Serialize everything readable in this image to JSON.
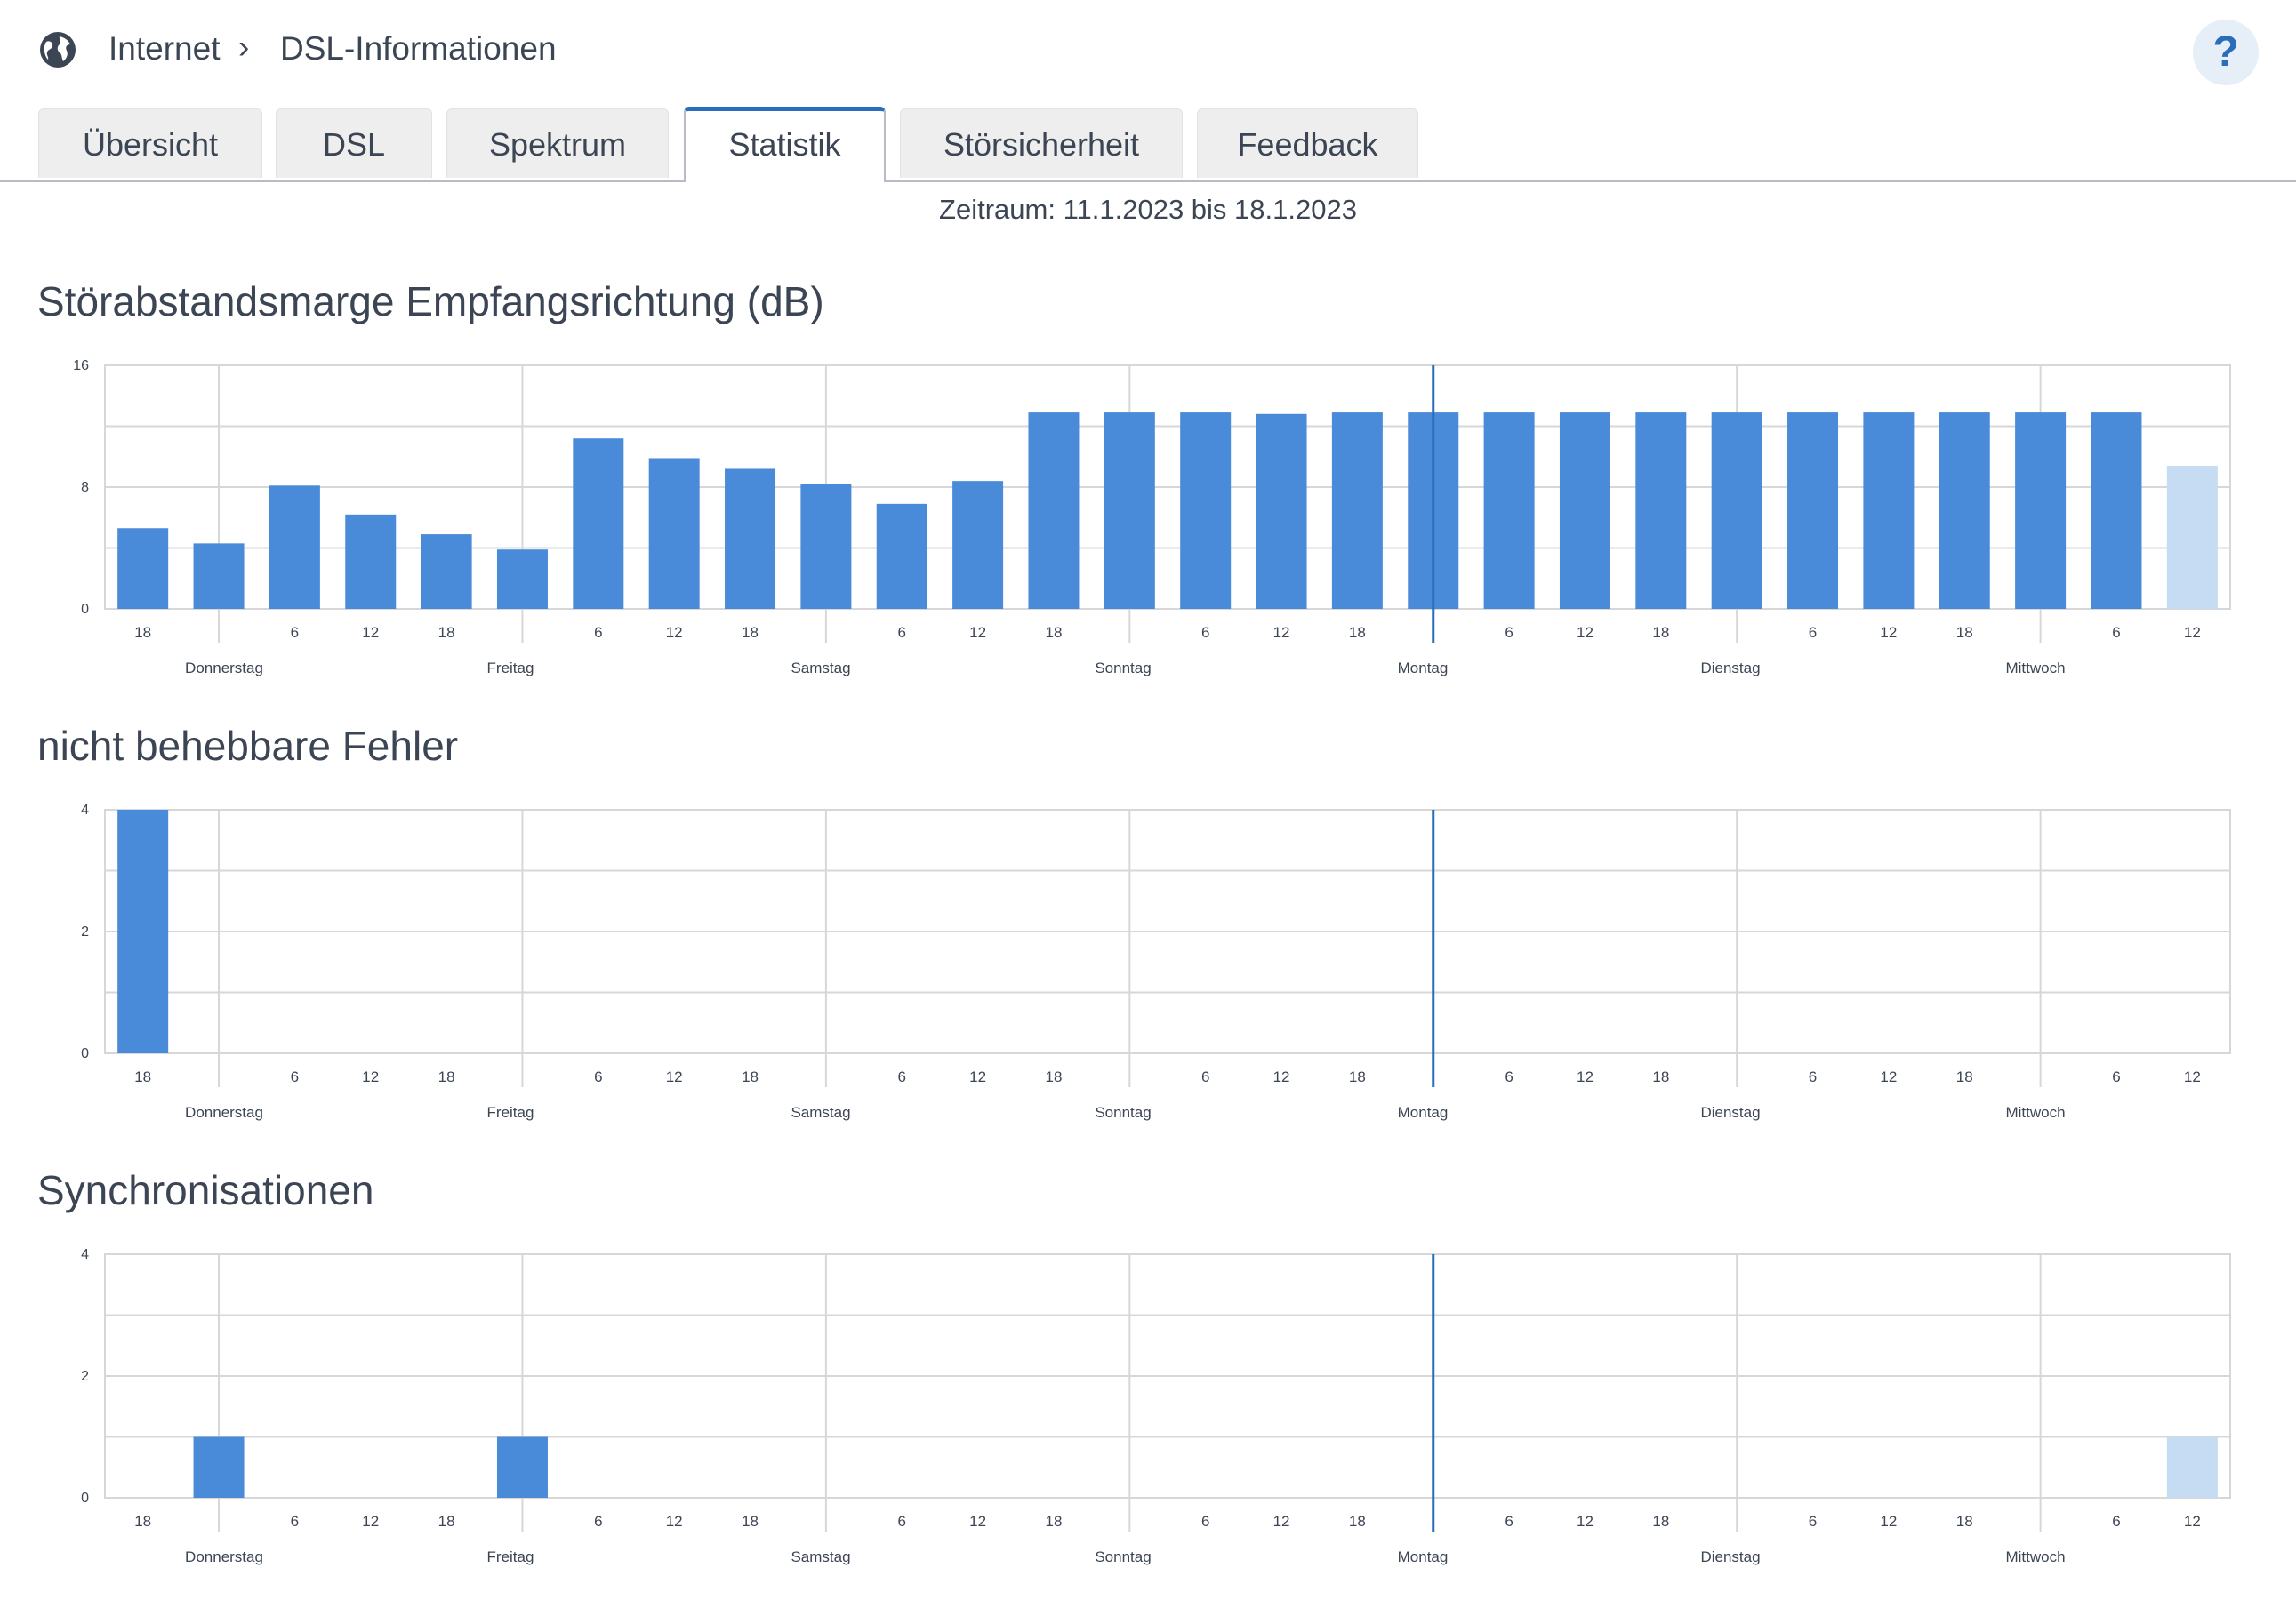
{
  "breadcrumb": {
    "level1": "Internet",
    "separator": "›",
    "level2": "DSL-Informationen"
  },
  "help_label": "?",
  "tabs": [
    {
      "label": "Übersicht",
      "active": false
    },
    {
      "label": "DSL",
      "active": false
    },
    {
      "label": "Spektrum",
      "active": false
    },
    {
      "label": "Statistik",
      "active": true
    },
    {
      "label": "Störsicherheit",
      "active": false
    },
    {
      "label": "Feedback",
      "active": false
    }
  ],
  "period": "Zeitraum: 11.1.2023 bis 18.1.2023",
  "colors": {
    "bar": "#4a8bd9",
    "bar_current": "#c5dcf2",
    "grid": "#d7d7d7",
    "marker": "#2a6ebb",
    "text": "#3c4554",
    "accent": "#2a6ebb"
  },
  "icons": {
    "globe": "globe-icon",
    "chevron": "chevron-right-icon",
    "help": "help-icon"
  },
  "chart_data": [
    {
      "type": "bar",
      "title": "Störabstandsmarge Empfangsrichtung (dB)",
      "ylim": [
        0,
        16
      ],
      "yticks": [
        0,
        8,
        16
      ],
      "hour_ticks": [
        "18",
        "",
        "6",
        "12",
        "18",
        "",
        "6",
        "12",
        "18",
        "",
        "6",
        "12",
        "18",
        "",
        "6",
        "12",
        "18",
        "",
        "6",
        "12",
        "18",
        "",
        "6",
        "12",
        "18",
        "",
        "6",
        "12"
      ],
      "day_labels": [
        "Donnerstag",
        "Freitag",
        "Samstag",
        "Sonntag",
        "Montag",
        "Dienstag",
        "Mittwoch"
      ],
      "values": [
        5.3,
        4.3,
        8.1,
        6.2,
        4.9,
        3.9,
        11.2,
        9.9,
        9.2,
        8.2,
        6.9,
        8.4,
        12.9,
        12.9,
        12.9,
        12.8,
        12.9,
        12.9,
        12.9,
        12.9,
        12.9,
        12.9,
        12.9,
        12.9,
        12.9,
        12.9,
        12.9,
        9.4
      ],
      "current_index": 27,
      "grid": true
    },
    {
      "type": "bar",
      "title": "nicht behebbare Fehler",
      "ylim": [
        0,
        4
      ],
      "yticks": [
        0,
        2,
        4
      ],
      "hour_ticks": [
        "18",
        "",
        "6",
        "12",
        "18",
        "",
        "6",
        "12",
        "18",
        "",
        "6",
        "12",
        "18",
        "",
        "6",
        "12",
        "18",
        "",
        "6",
        "12",
        "18",
        "",
        "6",
        "12",
        "18",
        "",
        "6",
        "12"
      ],
      "day_labels": [
        "Donnerstag",
        "Freitag",
        "Samstag",
        "Sonntag",
        "Montag",
        "Dienstag",
        "Mittwoch"
      ],
      "values": [
        4,
        0,
        0,
        0,
        0,
        0,
        0,
        0,
        0,
        0,
        0,
        0,
        0,
        0,
        0,
        0,
        0,
        0,
        0,
        0,
        0,
        0,
        0,
        0,
        0,
        0,
        0,
        0
      ],
      "current_index": 27,
      "grid": true
    },
    {
      "type": "bar",
      "title": "Synchronisationen",
      "ylim": [
        0,
        4
      ],
      "yticks": [
        0,
        2,
        4
      ],
      "hour_ticks": [
        "18",
        "",
        "6",
        "12",
        "18",
        "",
        "6",
        "12",
        "18",
        "",
        "6",
        "12",
        "18",
        "",
        "6",
        "12",
        "18",
        "",
        "6",
        "12",
        "18",
        "",
        "6",
        "12",
        "18",
        "",
        "6",
        "12"
      ],
      "day_labels": [
        "Donnerstag",
        "Freitag",
        "Samstag",
        "Sonntag",
        "Montag",
        "Dienstag",
        "Mittwoch"
      ],
      "values": [
        0,
        1,
        0,
        0,
        0,
        1,
        0,
        0,
        0,
        0,
        0,
        0,
        0,
        0,
        0,
        0,
        0,
        0,
        0,
        0,
        0,
        0,
        0,
        0,
        0,
        0,
        0,
        1
      ],
      "current_index": 27,
      "grid": true
    }
  ]
}
